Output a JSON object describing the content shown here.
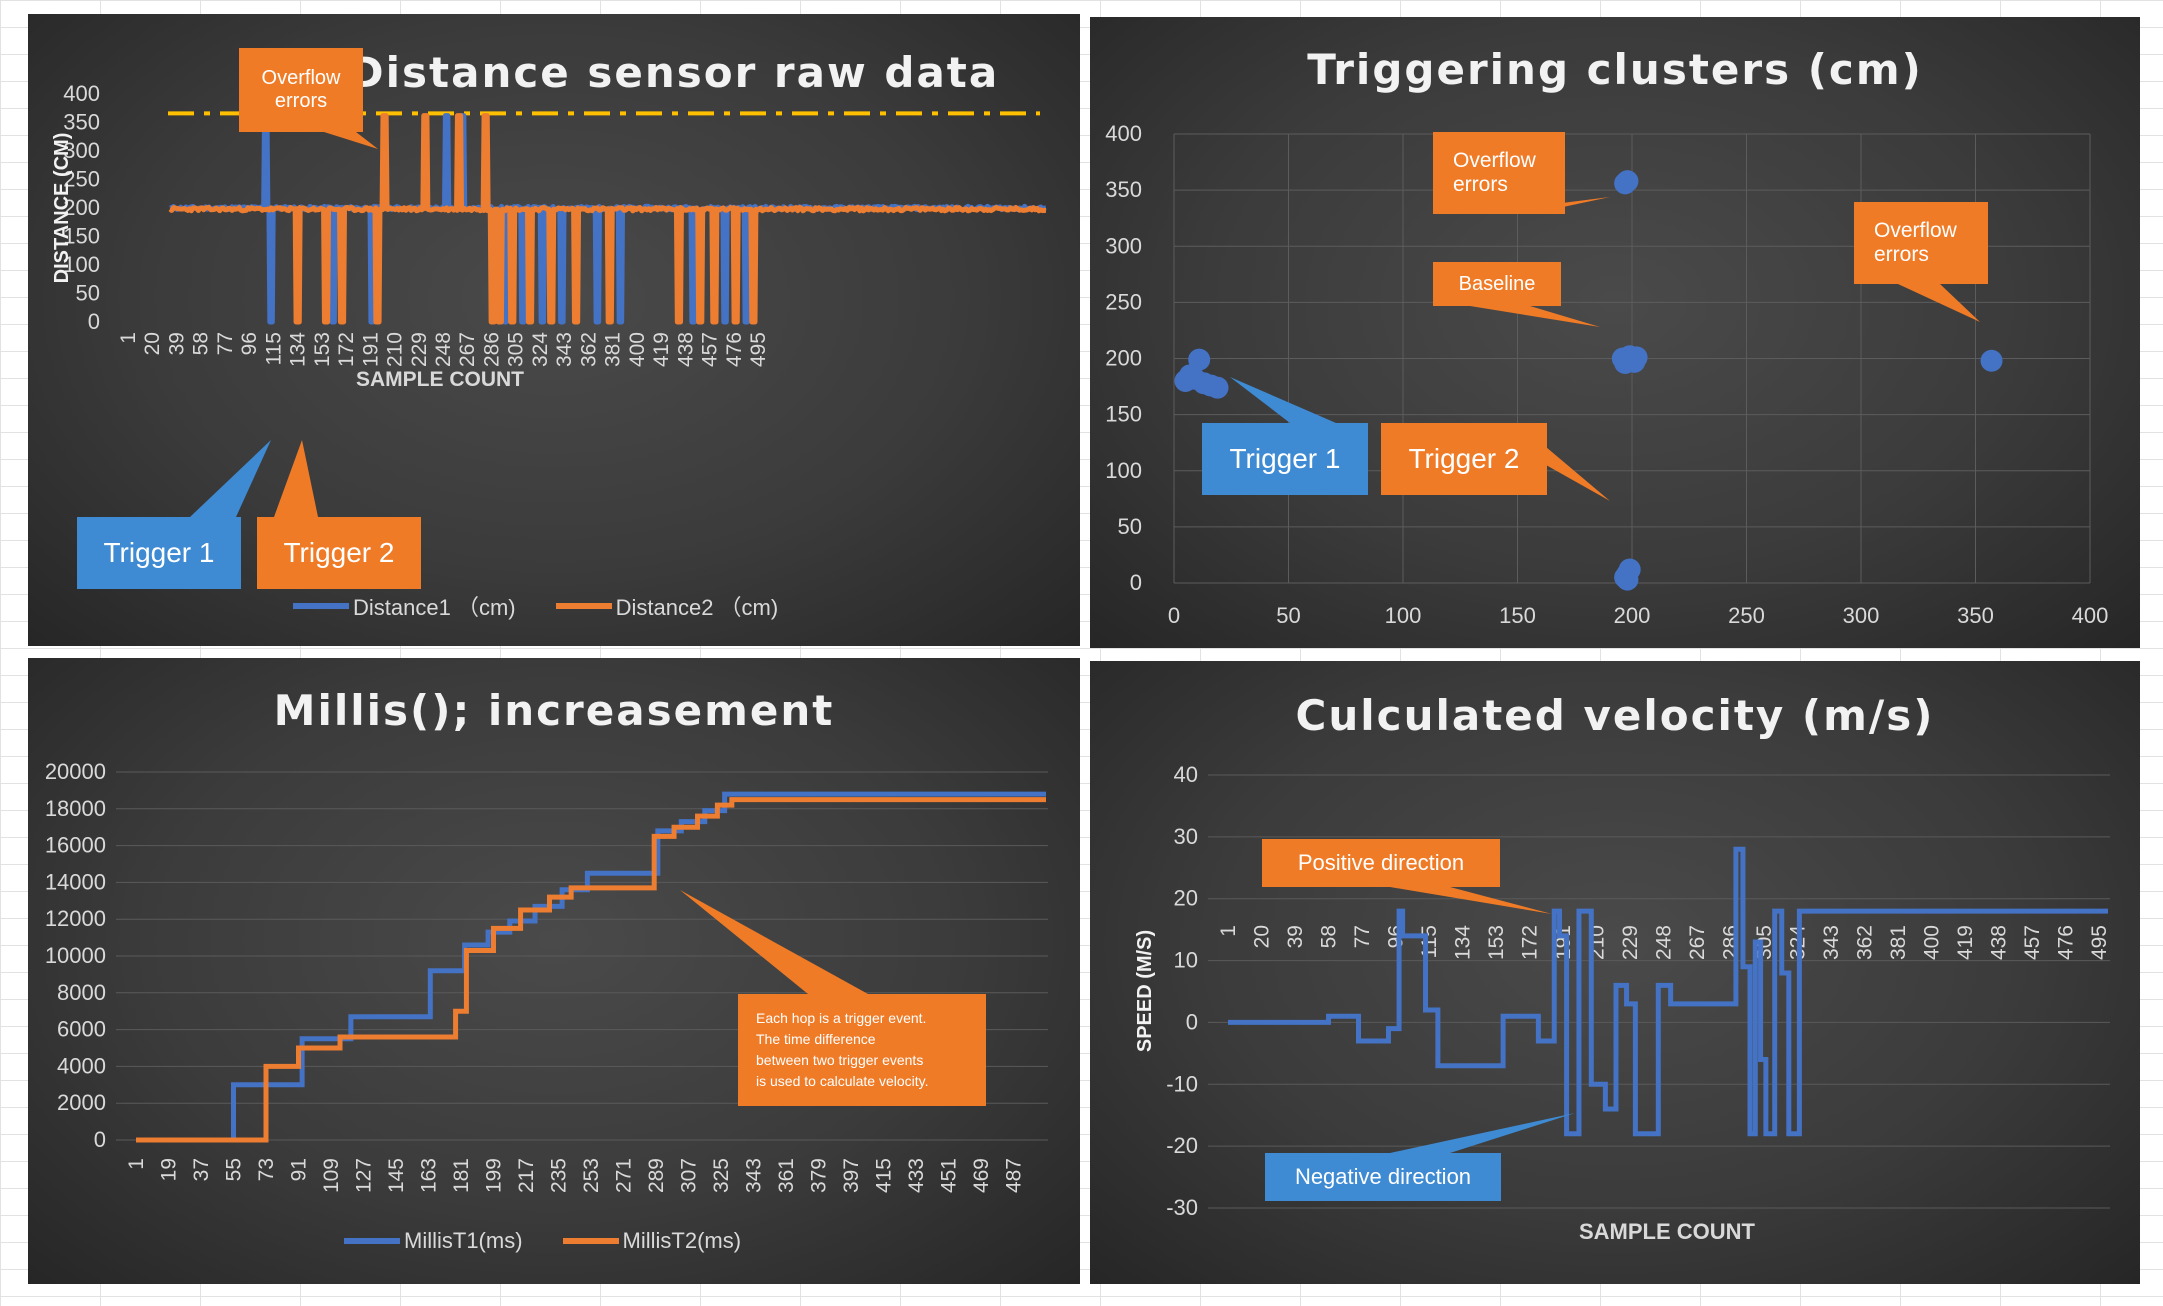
{
  "chart_data": [
    {
      "type": "line",
      "title": "Distance sensor raw data",
      "xlabel": "SAMPLE COUNT",
      "ylabel": "DISTANCE  (CM)",
      "ylim": [
        0,
        400
      ],
      "yticks": [
        0,
        50,
        100,
        150,
        200,
        250,
        300,
        350,
        400
      ],
      "xlim": [
        1,
        500
      ],
      "xticks": [
        1,
        20,
        39,
        58,
        77,
        96,
        115,
        134,
        153,
        172,
        191,
        210,
        229,
        248,
        267,
        286,
        305,
        324,
        343,
        362,
        381,
        400,
        419,
        438,
        457,
        476,
        495
      ],
      "xtick_labels": [
        "1",
        "20",
        "39",
        "58",
        "77",
        "96",
        "115",
        "134",
        "153",
        "172",
        "191",
        "210",
        "229",
        "248",
        "267",
        "286",
        "305",
        "324",
        "343",
        "362",
        "381",
        "400",
        "419",
        "438",
        "457",
        "476",
        "495"
      ],
      "threshold_line": 366,
      "series": [
        {
          "name": "Distance1 （cm)",
          "color": "#4472c4",
          "baseline": 200,
          "events": [
            [
              55,
              362
            ],
            [
              58,
              0
            ],
            [
              93,
              0
            ],
            [
              115,
              0
            ],
            [
              157,
              362
            ],
            [
              166,
              362
            ],
            [
              190,
              0
            ],
            [
              200,
              0
            ],
            [
              211,
              0
            ],
            [
              222,
              0
            ],
            [
              242,
              0
            ],
            [
              255,
              0
            ],
            [
              296,
              0
            ],
            [
              314,
              0
            ],
            [
              326,
              0
            ]
          ]
        },
        {
          "name": "Distance2 （cm)",
          "color": "#ed7d31",
          "baseline": 198,
          "events": [
            [
              73,
              0
            ],
            [
              89,
              0
            ],
            [
              98,
              0
            ],
            [
              118,
              0
            ],
            [
              122,
              362
            ],
            [
              145,
              362
            ],
            [
              164,
              362
            ],
            [
              179,
              362
            ],
            [
              183,
              0
            ],
            [
              187,
              0
            ],
            [
              194,
              0
            ],
            [
              204,
              0
            ],
            [
              216,
              0
            ],
            [
              230,
              0
            ],
            [
              249,
              0
            ],
            [
              288,
              0
            ],
            [
              300,
              0
            ],
            [
              308,
              0
            ],
            [
              320,
              0
            ],
            [
              330,
              0
            ]
          ]
        }
      ]
    },
    {
      "type": "scatter",
      "title": "Triggering clusters (cm)",
      "xlim": [
        0,
        400
      ],
      "ylim": [
        0,
        400
      ],
      "xticks": [
        0,
        50,
        100,
        150,
        200,
        250,
        300,
        350,
        400
      ],
      "yticks": [
        0,
        50,
        100,
        150,
        200,
        250,
        300,
        350,
        400
      ],
      "series": [
        {
          "name": "clusters",
          "color": "#4472c4",
          "points": [
            [
              5,
              180
            ],
            [
              7,
              185
            ],
            [
              9,
              182
            ],
            [
              11,
              199
            ],
            [
              13,
              178
            ],
            [
              16,
              176
            ],
            [
              19,
              174
            ],
            [
              196,
              200
            ],
            [
              197,
              196
            ],
            [
              198,
              198
            ],
            [
              199,
              202
            ],
            [
              200,
              199
            ],
            [
              201,
              197
            ],
            [
              202,
              201
            ],
            [
              197,
              356
            ],
            [
              198,
              358
            ],
            [
              197,
              5
            ],
            [
              198,
              8
            ],
            [
              199,
              12
            ],
            [
              198,
              3
            ],
            [
              357,
              198
            ]
          ]
        }
      ]
    },
    {
      "type": "line",
      "title": "Millis(); increasement",
      "ylim": [
        0,
        20000
      ],
      "yticks": [
        0,
        2000,
        4000,
        6000,
        8000,
        10000,
        12000,
        14000,
        16000,
        18000,
        20000
      ],
      "ytick_labels": [
        "0",
        "2000",
        "4000",
        "6000",
        "8000",
        "10000",
        "12000",
        "14000",
        "16000",
        "18000",
        "20000"
      ],
      "xlim": [
        1,
        505
      ],
      "xticks": [
        1,
        19,
        37,
        55,
        73,
        91,
        109,
        127,
        145,
        163,
        181,
        199,
        217,
        235,
        253,
        271,
        289,
        307,
        325,
        343,
        361,
        379,
        397,
        415,
        433,
        451,
        469,
        487
      ],
      "xtick_labels": [
        "1",
        "19",
        "37",
        "55",
        "73",
        "91",
        "109",
        "127",
        "145",
        "163",
        "181",
        "199",
        "217",
        "235",
        "253",
        "271",
        "289",
        "307",
        "325",
        "343",
        "361",
        "379",
        "397",
        "415",
        "433",
        "451",
        "469",
        "487"
      ],
      "series": [
        {
          "name": "MillisT1(ms)",
          "color": "#4472c4",
          "steps": [
            [
              1,
              0
            ],
            [
              55,
              3000
            ],
            [
              93,
              5500
            ],
            [
              120,
              6700
            ],
            [
              164,
              9200
            ],
            [
              183,
              10600
            ],
            [
              196,
              11300
            ],
            [
              208,
              11900
            ],
            [
              222,
              12700
            ],
            [
              237,
              13600
            ],
            [
              251,
              14500
            ],
            [
              290,
              16800
            ],
            [
              303,
              17300
            ],
            [
              316,
              17900
            ],
            [
              327,
              18800
            ],
            [
              505,
              18800
            ]
          ]
        },
        {
          "name": "MillisT2(ms)",
          "color": "#ed7d31",
          "steps": [
            [
              1,
              0
            ],
            [
              73,
              4000
            ],
            [
              91,
              5000
            ],
            [
              114,
              5600
            ],
            [
              178,
              7000
            ],
            [
              184,
              10300
            ],
            [
              199,
              11500
            ],
            [
              214,
              12500
            ],
            [
              230,
              13200
            ],
            [
              242,
              13700
            ],
            [
              288,
              16500
            ],
            [
              299,
              17000
            ],
            [
              312,
              17600
            ],
            [
              323,
              18200
            ],
            [
              331,
              18500
            ],
            [
              505,
              18500
            ]
          ]
        }
      ]
    },
    {
      "type": "line",
      "title": "Culculated velocity (m/s)",
      "xlabel": "SAMPLE COUNT",
      "ylabel": "SPEED (M/S)",
      "ylim": [
        -30,
        40
      ],
      "yticks": [
        -30,
        -20,
        -10,
        0,
        10,
        20,
        30,
        40
      ],
      "xlim": [
        1,
        500
      ],
      "xticks": [
        1,
        20,
        39,
        58,
        77,
        96,
        115,
        134,
        153,
        172,
        191,
        210,
        229,
        248,
        267,
        286,
        305,
        324,
        343,
        362,
        381,
        400,
        419,
        438,
        457,
        476,
        495
      ],
      "xtick_labels": [
        "1",
        "20",
        "39",
        "58",
        "77",
        "96",
        "115",
        "134",
        "153",
        "172",
        "191",
        "210",
        "229",
        "248",
        "267",
        "286",
        "305",
        "324",
        "343",
        "362",
        "381",
        "400",
        "419",
        "438",
        "457",
        "476",
        "495"
      ],
      "series": [
        {
          "name": "velocity",
          "color": "#4472c4",
          "steps": [
            [
              1,
              0
            ],
            [
              58,
              1
            ],
            [
              75,
              -3
            ],
            [
              92,
              -1
            ],
            [
              98,
              18
            ],
            [
              100,
              14
            ],
            [
              113,
              2
            ],
            [
              120,
              -7
            ],
            [
              157,
              1
            ],
            [
              177,
              -3
            ],
            [
              186,
              18
            ],
            [
              189,
              14
            ],
            [
              193,
              -18
            ],
            [
              200,
              18
            ],
            [
              207,
              -10
            ],
            [
              215,
              -14
            ],
            [
              221,
              6
            ],
            [
              227,
              3
            ],
            [
              232,
              -18
            ],
            [
              245,
              6
            ],
            [
              252,
              3
            ],
            [
              289,
              28
            ],
            [
              293,
              9
            ],
            [
              297,
              -18
            ],
            [
              300,
              13
            ],
            [
              303,
              -6
            ],
            [
              306,
              -18
            ],
            [
              311,
              18
            ],
            [
              315,
              8
            ],
            [
              319,
              -18
            ],
            [
              325,
              18
            ],
            [
              500,
              18
            ]
          ]
        }
      ]
    }
  ],
  "panel1": {
    "title": "Distance sensor raw data",
    "ylabel": "DISTANCE  (CM)",
    "xlabel": "SAMPLE COUNT",
    "callout_overflow_line1": "Overflow",
    "callout_overflow_line2": "errors",
    "callout_trigger1": "Trigger 1",
    "callout_trigger2": "Trigger 2",
    "legend1": "Distance1 （cm)",
    "legend2": "Distance2 （cm)"
  },
  "panel2": {
    "title": "Triggering clusters (cm)",
    "callout_overflow1_line1": "Overflow",
    "callout_overflow1_line2": "errors",
    "callout_overflow2_line1": "Overflow",
    "callout_overflow2_line2": "errors",
    "callout_baseline": "Baseline",
    "callout_trigger1": "Trigger 1",
    "callout_trigger2": "Trigger 2"
  },
  "panel3": {
    "title": "Millis(); increasement",
    "note_line1": "Each hop is a trigger event.",
    "note_line2": "The time difference",
    "note_line3": "between two trigger events",
    "note_line4": "is used to calculate velocity.",
    "legend1": "MillisT1(ms)",
    "legend2": "MillisT2(ms)"
  },
  "panel4": {
    "title": "Culculated velocity (m/s)",
    "ylabel": "SPEED (M/S)",
    "xlabel": "SAMPLE COUNT",
    "callout_positive": "Positive direction",
    "callout_negative": "Negative direction"
  }
}
